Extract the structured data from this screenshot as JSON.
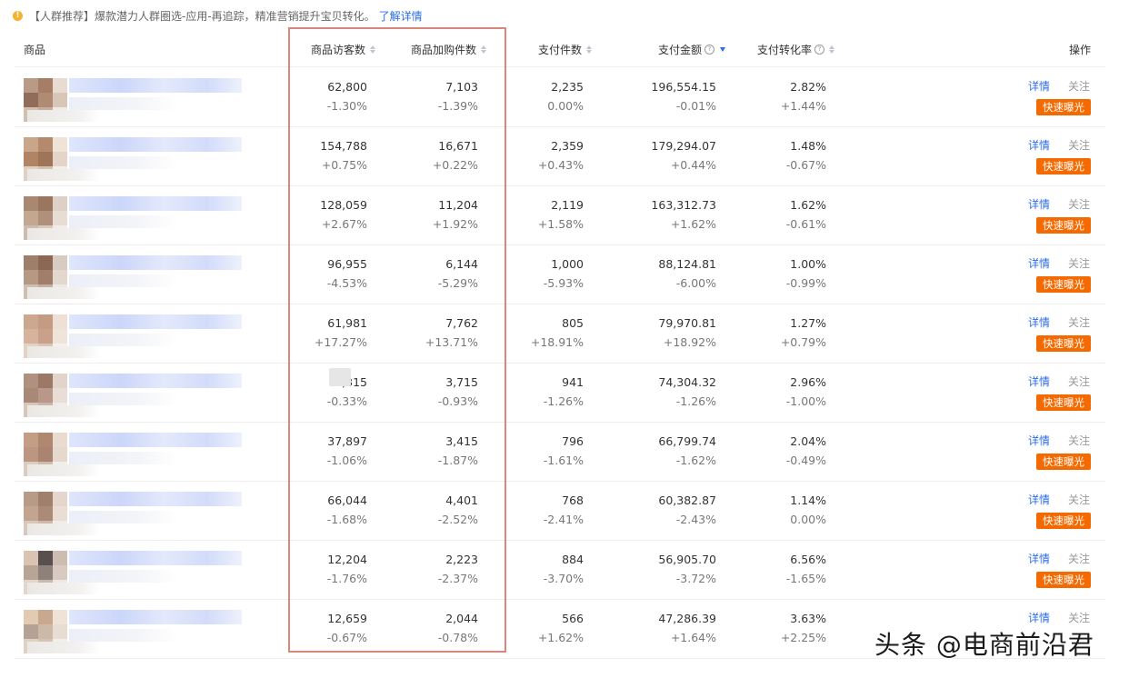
{
  "notice": {
    "text": "【人群推荐】爆款潜力人群圈选-应用-再追踪，精准营销提升宝贝转化。",
    "link": "了解详情"
  },
  "headers": {
    "product": "商品",
    "visitors": "商品访客数",
    "cart_items": "商品加购件数",
    "paid_items": "支付件数",
    "paid_amount": "支付金额",
    "conversion": "支付转化率",
    "actions": "操作"
  },
  "actions": {
    "detail": "详情",
    "follow": "关注",
    "boost": "快速曝光"
  },
  "rows": [
    {
      "visitors": "62,800",
      "visitors_change": "-1.30%",
      "cart": "7,103",
      "cart_change": "-1.39%",
      "paid_items": "2,235",
      "paid_items_change": "0.00%",
      "amount": "196,554.15",
      "amount_change": "-0.01%",
      "conv": "2.82%",
      "conv_change": "+1.44%"
    },
    {
      "visitors": "154,788",
      "visitors_change": "+0.75%",
      "cart": "16,671",
      "cart_change": "+0.22%",
      "paid_items": "2,359",
      "paid_items_change": "+0.43%",
      "amount": "179,294.07",
      "amount_change": "+0.44%",
      "conv": "1.48%",
      "conv_change": "-0.67%"
    },
    {
      "visitors": "128,059",
      "visitors_change": "+2.67%",
      "cart": "11,204",
      "cart_change": "+1.92%",
      "paid_items": "2,119",
      "paid_items_change": "+1.58%",
      "amount": "163,312.73",
      "amount_change": "+1.62%",
      "conv": "1.62%",
      "conv_change": "-0.61%"
    },
    {
      "visitors": "96,955",
      "visitors_change": "-4.53%",
      "cart": "6,144",
      "cart_change": "-5.29%",
      "paid_items": "1,000",
      "paid_items_change": "-5.93%",
      "amount": "88,124.81",
      "amount_change": "-6.00%",
      "conv": "1.00%",
      "conv_change": "-0.99%"
    },
    {
      "visitors": "61,981",
      "visitors_change": "+17.27%",
      "cart": "7,762",
      "cart_change": "+13.71%",
      "paid_items": "805",
      "paid_items_change": "+18.91%",
      "amount": "79,970.81",
      "amount_change": "+18.92%",
      "conv": "1.27%",
      "conv_change": "+0.79%"
    },
    {
      "visitors": ",315",
      "visitors_change": "-0.33%",
      "cart": "3,715",
      "cart_change": "-0.93%",
      "paid_items": "941",
      "paid_items_change": "-1.26%",
      "amount": "74,304.32",
      "amount_change": "-1.26%",
      "conv": "2.96%",
      "conv_change": "-1.00%"
    },
    {
      "visitors": "37,897",
      "visitors_change": "-1.06%",
      "cart": "3,415",
      "cart_change": "-1.87%",
      "paid_items": "796",
      "paid_items_change": "-1.61%",
      "amount": "66,799.74",
      "amount_change": "-1.62%",
      "conv": "2.04%",
      "conv_change": "-0.49%"
    },
    {
      "visitors": "66,044",
      "visitors_change": "-1.68%",
      "cart": "4,401",
      "cart_change": "-2.52%",
      "paid_items": "768",
      "paid_items_change": "-2.41%",
      "amount": "60,382.87",
      "amount_change": "-2.43%",
      "conv": "1.14%",
      "conv_change": "0.00%"
    },
    {
      "visitors": "12,204",
      "visitors_change": "-1.76%",
      "cart": "2,223",
      "cart_change": "-2.37%",
      "paid_items": "884",
      "paid_items_change": "-3.70%",
      "amount": "56,905.70",
      "amount_change": "-3.72%",
      "conv": "6.56%",
      "conv_change": "-1.65%"
    },
    {
      "visitors": "12,659",
      "visitors_change": "-0.67%",
      "cart": "2,044",
      "cart_change": "-0.78%",
      "paid_items": "566",
      "paid_items_change": "+1.62%",
      "amount": "47,286.39",
      "amount_change": "+1.64%",
      "conv": "3.63%",
      "conv_change": "+2.25%"
    }
  ],
  "colors": {
    "accent": "#2b6de5",
    "boost_button": "#f56a00",
    "highlight_border": "#d9867c"
  },
  "watermark": "头条 @电商前沿君"
}
